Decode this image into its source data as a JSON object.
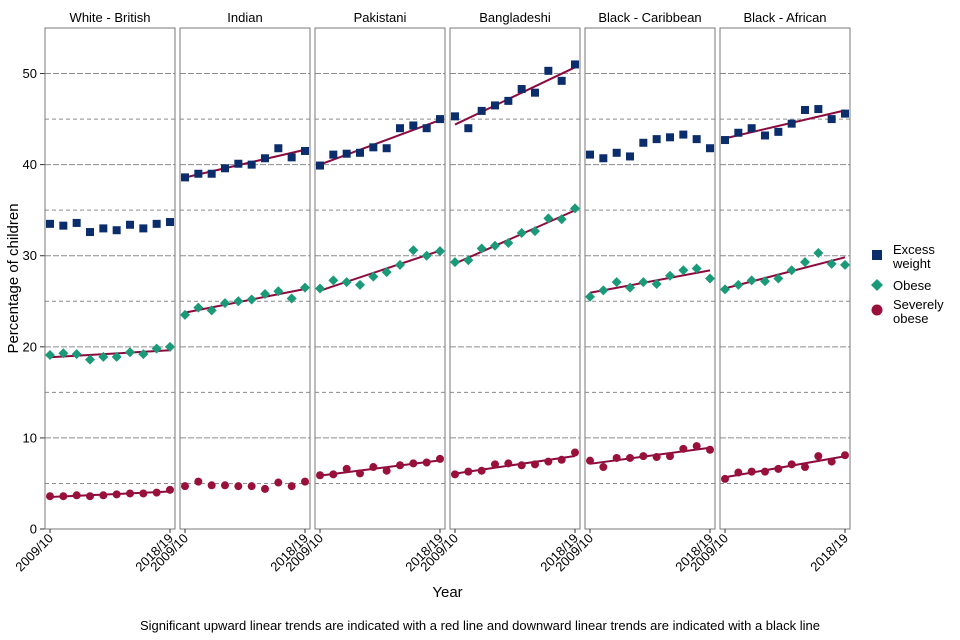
{
  "chart_data": {
    "type": "scatter",
    "xlabel": "Year",
    "ylabel": "Percentage of children",
    "ylim": [
      0,
      55
    ],
    "yticks": [
      0,
      10,
      20,
      30,
      40,
      50
    ],
    "x_tick_labels": [
      "2009/10",
      "2018/19"
    ],
    "grid": "horizontal dashed",
    "legend_position": "right",
    "series": [
      {
        "key": "excess",
        "name": "Excess weight",
        "name_lines": [
          "Excess",
          "weight"
        ],
        "color": "#0b2d6b",
        "marker": "square"
      },
      {
        "key": "obese",
        "name": "Obese",
        "name_lines": [
          "Obese"
        ],
        "color": "#1a9a78",
        "marker": "diamond"
      },
      {
        "key": "severe",
        "name": "Severely obese",
        "name_lines": [
          "Severely",
          "obese"
        ],
        "color": "#99103a",
        "marker": "circle"
      }
    ],
    "trend_color": "#8c0a3e",
    "facets": [
      {
        "name": "White - British",
        "excess": [
          33.5,
          33.3,
          33.6,
          32.6,
          33.0,
          32.8,
          33.4,
          33.0,
          33.5,
          33.7
        ],
        "obese": [
          19.1,
          19.3,
          19.2,
          18.6,
          18.9,
          18.9,
          19.4,
          19.2,
          19.8,
          20.0
        ],
        "severe": [
          3.6,
          3.6,
          3.7,
          3.6,
          3.7,
          3.8,
          3.9,
          3.9,
          4.0,
          4.3
        ],
        "trends": [
          "obese",
          "severe"
        ]
      },
      {
        "name": "Indian",
        "excess": [
          38.6,
          39.0,
          39.0,
          39.6,
          40.1,
          40.0,
          40.7,
          41.8,
          40.8,
          41.5
        ],
        "obese": [
          23.5,
          24.3,
          24.0,
          24.8,
          25.0,
          25.2,
          25.8,
          26.1,
          25.3,
          26.5
        ],
        "severe": [
          4.7,
          5.2,
          4.8,
          4.8,
          4.7,
          4.7,
          4.4,
          5.1,
          4.7,
          5.2
        ],
        "trends": [
          "excess",
          "obese"
        ]
      },
      {
        "name": "Pakistani",
        "excess": [
          39.9,
          41.1,
          41.2,
          41.3,
          41.9,
          41.8,
          44.0,
          44.3,
          44.0,
          45.0
        ],
        "obese": [
          26.4,
          27.3,
          27.1,
          26.8,
          27.7,
          28.2,
          29.0,
          30.6,
          30.0,
          30.5
        ],
        "severe": [
          5.9,
          6.0,
          6.6,
          6.1,
          6.8,
          6.4,
          7.0,
          7.2,
          7.3,
          7.7
        ],
        "trends": [
          "excess",
          "obese",
          "severe"
        ]
      },
      {
        "name": "Bangladeshi",
        "excess": [
          45.3,
          44.0,
          45.9,
          46.5,
          47.0,
          48.3,
          47.9,
          50.3,
          49.2,
          51.0
        ],
        "obese": [
          29.3,
          29.5,
          30.8,
          31.1,
          31.4,
          32.5,
          32.7,
          34.1,
          34.0,
          35.2
        ],
        "severe": [
          6.0,
          6.3,
          6.4,
          7.1,
          7.2,
          7.0,
          7.1,
          7.4,
          7.6,
          8.4
        ],
        "trends": [
          "excess",
          "obese",
          "severe"
        ]
      },
      {
        "name": "Black - Caribbean",
        "excess": [
          41.1,
          40.7,
          41.3,
          40.9,
          42.4,
          42.8,
          43.0,
          43.3,
          42.8,
          41.8
        ],
        "obese": [
          25.5,
          26.2,
          27.1,
          26.5,
          27.1,
          26.9,
          27.8,
          28.4,
          28.6,
          27.5
        ],
        "severe": [
          7.5,
          6.8,
          7.8,
          7.8,
          8.0,
          7.9,
          8.0,
          8.8,
          9.1,
          8.7
        ],
        "trends": [
          "obese",
          "severe"
        ]
      },
      {
        "name": "Black - African",
        "excess": [
          42.7,
          43.5,
          44.0,
          43.2,
          43.6,
          44.5,
          46.0,
          46.1,
          45.0,
          45.6
        ],
        "obese": [
          26.3,
          26.8,
          27.3,
          27.2,
          27.5,
          28.4,
          29.3,
          30.3,
          29.1,
          29.0
        ],
        "severe": [
          5.5,
          6.2,
          6.3,
          6.3,
          6.6,
          7.1,
          6.8,
          8.0,
          7.4,
          8.1
        ],
        "trends": [
          "excess",
          "obese",
          "severe"
        ]
      }
    ],
    "footnote": "Significant upward linear trends are indicated with a red line and downward linear trends are indicated with a black line"
  }
}
